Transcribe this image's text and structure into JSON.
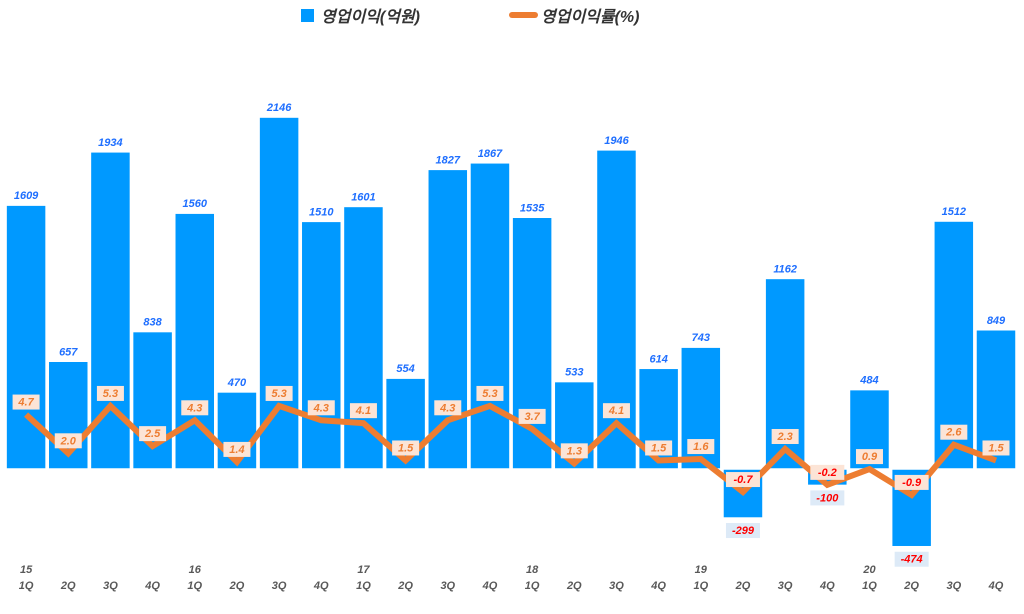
{
  "chart_data": {
    "type": "bar+line",
    "categories": [
      "15 1Q",
      "2Q",
      "3Q",
      "4Q",
      "16 1Q",
      "2Q",
      "3Q",
      "4Q",
      "17 1Q",
      "2Q",
      "3Q",
      "4Q",
      "18 1Q",
      "2Q",
      "3Q",
      "4Q",
      "19 1Q",
      "2Q",
      "3Q",
      "4Q",
      "20 1Q",
      "2Q",
      "3Q",
      "4Q"
    ],
    "category_lines": [
      [
        "15",
        "1Q"
      ],
      [
        "",
        "2Q"
      ],
      [
        "",
        "3Q"
      ],
      [
        "",
        "4Q"
      ],
      [
        "16",
        "1Q"
      ],
      [
        "",
        "2Q"
      ],
      [
        "",
        "3Q"
      ],
      [
        "",
        "4Q"
      ],
      [
        "17",
        "1Q"
      ],
      [
        "",
        "2Q"
      ],
      [
        "",
        "3Q"
      ],
      [
        "",
        "4Q"
      ],
      [
        "18",
        "1Q"
      ],
      [
        "",
        "2Q"
      ],
      [
        "",
        "3Q"
      ],
      [
        "",
        "4Q"
      ],
      [
        "19",
        "1Q"
      ],
      [
        "",
        "2Q"
      ],
      [
        "",
        "3Q"
      ],
      [
        "",
        "4Q"
      ],
      [
        "20",
        "1Q"
      ],
      [
        "",
        "2Q"
      ],
      [
        "",
        "3Q"
      ],
      [
        "",
        "4Q"
      ]
    ],
    "series": [
      {
        "name": "영업이익(억원)",
        "type": "bar",
        "color": "#0099ff",
        "values": [
          1609,
          657,
          1934,
          838,
          1560,
          470,
          2146,
          1510,
          1601,
          554,
          1827,
          1867,
          1535,
          533,
          1946,
          614,
          743,
          -299,
          1162,
          -100,
          484,
          -474,
          1512,
          849
        ]
      },
      {
        "name": "영업이익률(%)",
        "type": "line",
        "color": "#ed7d31",
        "values": [
          4.7,
          2.0,
          5.3,
          2.5,
          4.3,
          1.4,
          5.3,
          4.3,
          4.1,
          1.5,
          4.3,
          5.3,
          3.7,
          1.3,
          4.1,
          1.5,
          1.6,
          -0.7,
          2.3,
          -0.2,
          0.9,
          -0.9,
          2.6,
          1.5
        ]
      }
    ],
    "label_colors": {
      "bar_positive": "#1f6fff",
      "negative": "#ff0000",
      "line_positive": "#ed7d31"
    },
    "legend": "top-center",
    "grid": false
  }
}
